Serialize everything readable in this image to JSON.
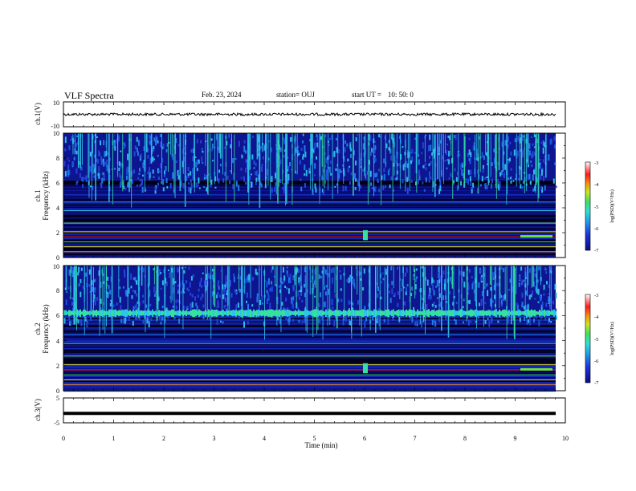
{
  "header": {
    "title": "VLF Spectra",
    "date": "Feb. 23, 2024",
    "station": "station= OUJ",
    "start_label": "start  UT  =",
    "start_time": "10: 50: 0"
  },
  "colors": {
    "frame": "#000000",
    "colormap": [
      "#0b0a8c",
      "#1a36d8",
      "#1f7ae8",
      "#2fc6e6",
      "#35e0a0",
      "#7ee23a",
      "#e6e11e",
      "#ff8a12",
      "#ff1a1a",
      "#ff9aa0",
      "#ffffff"
    ]
  },
  "chart_data": [
    {
      "type": "line",
      "name_label": "ch.1(V)",
      "y_ticks": [
        "10",
        "-10"
      ],
      "ylim": [
        -10,
        10
      ],
      "description_level": 0,
      "x_range_min": [
        0,
        10
      ]
    },
    {
      "type": "heatmap",
      "ylabel_channel": "ch.1",
      "ylabel": "Frequency (kHz)",
      "y_ticks": [
        "0",
        "2",
        "4",
        "6",
        "8",
        "10"
      ],
      "ylim": [
        0,
        10
      ],
      "colorbar": {
        "label": "log(PSD)(V²/Hz)",
        "ticks": [
          "-3",
          "-4",
          "-5",
          "-6",
          "-7"
        ],
        "range": [
          -7,
          -3
        ]
      }
    },
    {
      "type": "heatmap",
      "ylabel_channel": "ch.2",
      "ylabel": "Frequency (kHz)",
      "y_ticks": [
        "0",
        "2",
        "4",
        "6",
        "8",
        "10"
      ],
      "ylim": [
        0,
        10
      ],
      "colorbar": {
        "label": "log(PSD)(V²/Hz)",
        "ticks": [
          "-3",
          "-4",
          "-5",
          "-6",
          "-7"
        ],
        "range": [
          -7,
          -3
        ]
      }
    },
    {
      "type": "line",
      "name_label": "ch.3(V)",
      "y_ticks": [
        "5",
        "-5"
      ],
      "ylim": [
        -5,
        5
      ],
      "value": -1.2
    }
  ],
  "x_axis": {
    "xlabel": "Time (min)",
    "ticks": [
      "0",
      "1",
      "2",
      "3",
      "4",
      "5",
      "6",
      "7",
      "8",
      "9",
      "10"
    ],
    "xlim": [
      0,
      10
    ]
  }
}
